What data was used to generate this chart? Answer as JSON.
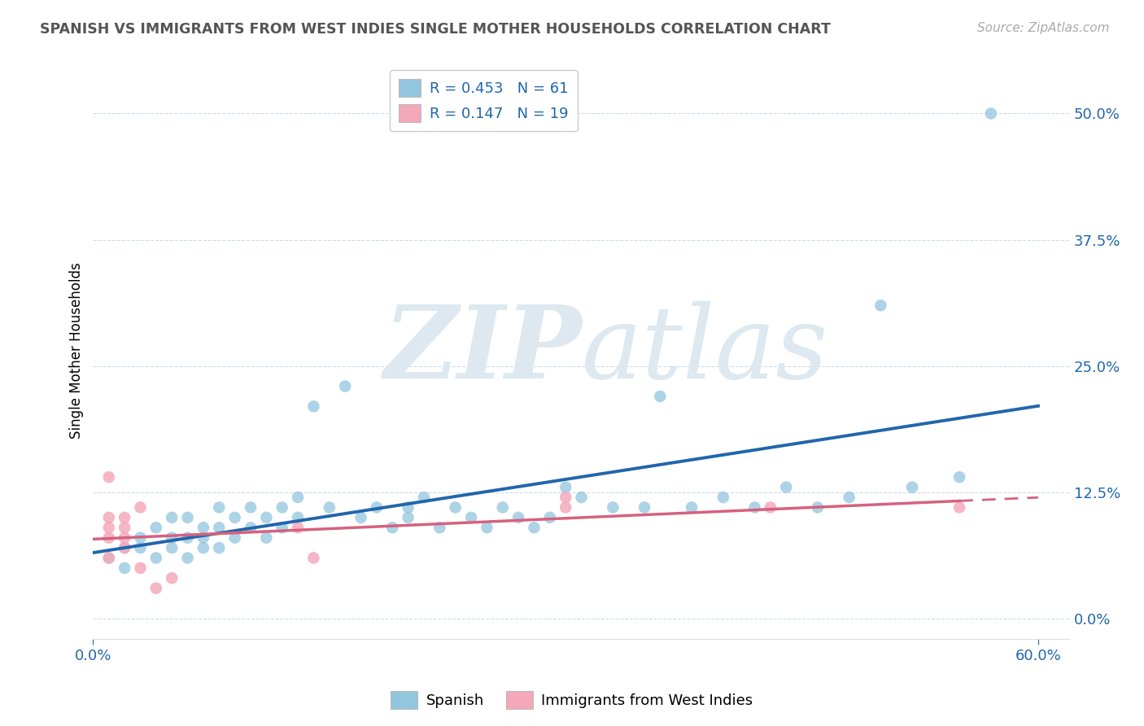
{
  "title": "SPANISH VS IMMIGRANTS FROM WEST INDIES SINGLE MOTHER HOUSEHOLDS CORRELATION CHART",
  "source": "Source: ZipAtlas.com",
  "ylabel": "Single Mother Households",
  "xlim": [
    0.0,
    0.62
  ],
  "ylim": [
    -0.02,
    0.55
  ],
  "yticks": [
    0.0,
    0.125,
    0.25,
    0.375,
    0.5
  ],
  "ytick_labels": [
    "0.0%",
    "12.5%",
    "25.0%",
    "37.5%",
    "50.0%"
  ],
  "xticks": [
    0.0,
    0.6
  ],
  "xtick_labels": [
    "0.0%",
    "60.0%"
  ],
  "legend_r1": "R = 0.453   N = 61",
  "legend_r2": "R = 0.147   N = 19",
  "blue_color": "#92c5de",
  "pink_color": "#f4a9bb",
  "blue_line_color": "#2166ac",
  "pink_line_color": "#d6617e",
  "watermark_zip": "ZIP",
  "watermark_atlas": "atlas",
  "spanish_x": [
    0.01,
    0.02,
    0.02,
    0.03,
    0.03,
    0.04,
    0.04,
    0.05,
    0.05,
    0.05,
    0.06,
    0.06,
    0.06,
    0.07,
    0.07,
    0.07,
    0.08,
    0.08,
    0.08,
    0.09,
    0.09,
    0.1,
    0.1,
    0.11,
    0.11,
    0.12,
    0.12,
    0.13,
    0.13,
    0.14,
    0.15,
    0.16,
    0.17,
    0.18,
    0.19,
    0.2,
    0.2,
    0.21,
    0.22,
    0.23,
    0.24,
    0.25,
    0.26,
    0.27,
    0.28,
    0.29,
    0.3,
    0.31,
    0.33,
    0.35,
    0.36,
    0.38,
    0.4,
    0.42,
    0.44,
    0.46,
    0.48,
    0.5,
    0.52,
    0.55,
    0.57
  ],
  "spanish_y": [
    0.06,
    0.07,
    0.05,
    0.07,
    0.08,
    0.06,
    0.09,
    0.08,
    0.07,
    0.1,
    0.06,
    0.08,
    0.1,
    0.08,
    0.07,
    0.09,
    0.09,
    0.07,
    0.11,
    0.1,
    0.08,
    0.09,
    0.11,
    0.1,
    0.08,
    0.09,
    0.11,
    0.1,
    0.12,
    0.21,
    0.11,
    0.23,
    0.1,
    0.11,
    0.09,
    0.11,
    0.1,
    0.12,
    0.09,
    0.11,
    0.1,
    0.09,
    0.11,
    0.1,
    0.09,
    0.1,
    0.13,
    0.12,
    0.11,
    0.11,
    0.22,
    0.11,
    0.12,
    0.11,
    0.13,
    0.11,
    0.12,
    0.31,
    0.13,
    0.14,
    0.5
  ],
  "westindies_x": [
    0.01,
    0.01,
    0.01,
    0.01,
    0.01,
    0.02,
    0.02,
    0.02,
    0.02,
    0.03,
    0.03,
    0.04,
    0.05,
    0.13,
    0.14,
    0.3,
    0.3,
    0.43,
    0.55
  ],
  "westindies_y": [
    0.14,
    0.1,
    0.09,
    0.08,
    0.06,
    0.1,
    0.09,
    0.08,
    0.07,
    0.11,
    0.05,
    0.03,
    0.04,
    0.09,
    0.06,
    0.11,
    0.12,
    0.11,
    0.11
  ]
}
